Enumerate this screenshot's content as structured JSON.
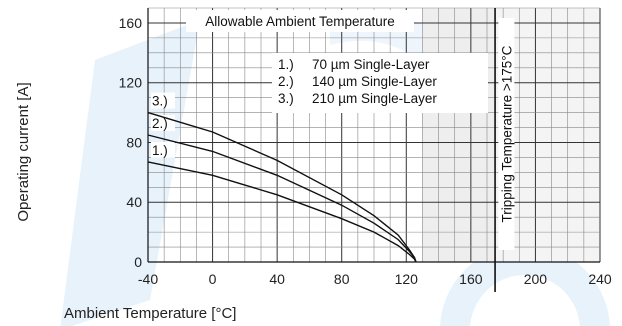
{
  "chart_data": {
    "type": "line",
    "title": "Allowable Ambient Temperature",
    "xlabel": "Ambient Temperature [°C]",
    "ylabel": "Operating current [A]",
    "xlim": [
      -40,
      240
    ],
    "ylim": [
      0,
      170
    ],
    "x_ticks": [
      "-40",
      "0",
      "40",
      "80",
      "120",
      "160",
      "200",
      "240"
    ],
    "y_ticks": [
      "0",
      "40",
      "80",
      "120",
      "160"
    ],
    "grid": true,
    "legend": {
      "placement": "upper-middle",
      "entries": [
        {
          "num": "1.)",
          "label": "70 µm Single-Layer"
        },
        {
          "num": "2.)",
          "label": "140 µm Single-Layer"
        },
        {
          "num": "3.)",
          "label": "210 µm Single-Layer"
        }
      ]
    },
    "tripping_line_x": 175,
    "tripping_label": "Tripping Temperature >175°C",
    "series": [
      {
        "label": "1.)",
        "x": [
          -40,
          0,
          40,
          80,
          100,
          115,
          122,
          125,
          126
        ],
        "y": [
          67,
          58,
          45,
          29,
          20,
          11,
          5,
          2,
          0
        ]
      },
      {
        "label": "2.)",
        "x": [
          -40,
          0,
          40,
          80,
          100,
          115,
          122,
          125,
          126
        ],
        "y": [
          85,
          74,
          58,
          38,
          26,
          15,
          7,
          3,
          0
        ]
      },
      {
        "label": "3.)",
        "x": [
          -40,
          0,
          40,
          80,
          100,
          115,
          122,
          125,
          126
        ],
        "y": [
          100,
          87,
          68,
          45,
          31,
          18,
          8,
          3,
          0
        ]
      }
    ]
  }
}
